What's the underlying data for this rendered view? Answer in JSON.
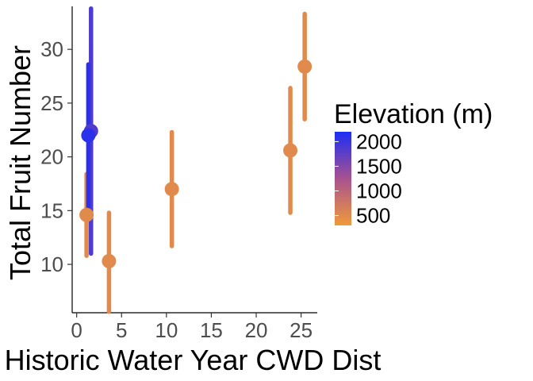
{
  "chart_data": {
    "type": "scatter",
    "title": "",
    "xlabel": "Historic Water Year CWD Dist",
    "ylabel": "Total Fruit Number",
    "xlim": [
      -0.5,
      26.8
    ],
    "ylim": [
      5.5,
      34
    ],
    "x_ticks": [
      0,
      5,
      10,
      15,
      20,
      25
    ],
    "y_ticks": [
      10,
      15,
      20,
      25,
      30
    ],
    "grid": false,
    "error_bars": true,
    "points": [
      {
        "x": 1.1,
        "y": 14.6,
        "ymin": 10.8,
        "ymax": 18.4,
        "elevation": 500
      },
      {
        "x": 1.3,
        "y": 22.0,
        "ymin": 15.3,
        "ymax": 28.6,
        "elevation": 2100
      },
      {
        "x": 1.6,
        "y": 22.4,
        "ymin": 11.0,
        "ymax": 33.8,
        "elevation": 1850
      },
      {
        "x": 3.6,
        "y": 10.3,
        "ymin": 5.6,
        "ymax": 14.8,
        "elevation": 500
      },
      {
        "x": 10.6,
        "y": 17.0,
        "ymin": 11.7,
        "ymax": 22.3,
        "elevation": 500
      },
      {
        "x": 23.8,
        "y": 20.6,
        "ymin": 14.8,
        "ymax": 26.4,
        "elevation": 500
      },
      {
        "x": 25.4,
        "y": 28.4,
        "ymin": 23.5,
        "ymax": 33.3,
        "elevation": 500
      }
    ],
    "legend": {
      "title": "Elevation (m)",
      "type": "colorbar",
      "placement": "right",
      "labels": [
        "2000",
        "1500",
        "1000",
        "500"
      ],
      "breaks": [
        2000,
        1500,
        1000,
        500
      ],
      "range": [
        300,
        2200
      ]
    },
    "colors": {
      "low": "#f0993b",
      "mid": "#a8528f",
      "high": "#1c2df5",
      "axis": "#000000",
      "tick_text": "#4d4d4d"
    }
  }
}
